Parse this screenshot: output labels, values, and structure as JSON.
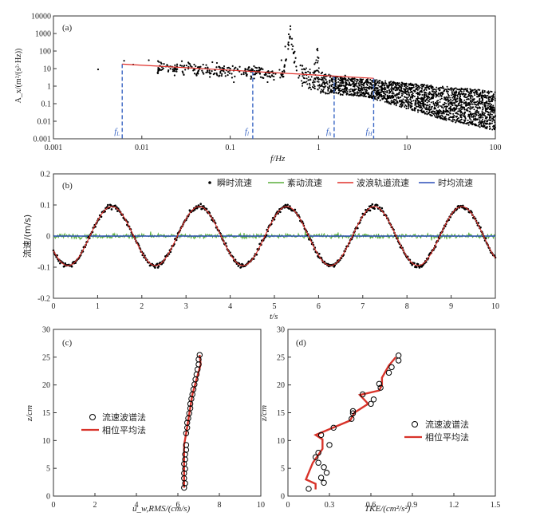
{
  "chart_data": [
    {
      "type": "scatter",
      "panel_label": "(a)",
      "xlabel": "f/Hz",
      "ylabel": "A_x/(m²/(s²·Hz))",
      "xscale": "log",
      "yscale": "log",
      "xlim": [
        0.001,
        100
      ],
      "ylim": [
        0.001,
        10000
      ],
      "xticks": [
        "0.001",
        "0.01",
        "0.1",
        "1",
        "10",
        "100"
      ],
      "yticks": [
        "0.001",
        "0.01",
        "0.1",
        "1",
        "10",
        "100",
        "1000",
        "10000"
      ],
      "spectrum_points": [
        [
          0.0032,
          9
        ],
        [
          0.0063,
          28
        ],
        [
          0.008,
          17
        ],
        [
          0.012,
          30
        ],
        [
          0.02,
          8
        ],
        [
          0.035,
          18
        ],
        [
          0.05,
          5
        ],
        [
          0.07,
          12
        ],
        [
          0.1,
          10
        ],
        [
          0.15,
          9
        ],
        [
          0.2,
          11
        ],
        [
          0.3,
          7
        ],
        [
          0.38,
          30
        ],
        [
          0.42,
          180
        ],
        [
          0.46,
          900
        ],
        [
          0.48,
          2600
        ],
        [
          0.5,
          500
        ],
        [
          0.55,
          40
        ],
        [
          0.65,
          9
        ],
        [
          0.8,
          6
        ],
        [
          0.9,
          18
        ],
        [
          0.96,
          120
        ],
        [
          1.0,
          40
        ],
        [
          1.1,
          6
        ],
        [
          1.5,
          3
        ],
        [
          2,
          4
        ],
        [
          3,
          2
        ],
        [
          4,
          2
        ],
        [
          6,
          1
        ],
        [
          10,
          0.5
        ],
        [
          20,
          0.1
        ],
        [
          40,
          0.05
        ],
        [
          70,
          0.02
        ],
        [
          100,
          0.02
        ]
      ],
      "envelope_upper": [
        [
          0.6,
          20
        ],
        [
          1,
          6
        ],
        [
          2,
          3
        ],
        [
          4,
          2.5
        ],
        [
          10,
          1.5
        ],
        [
          30,
          0.9
        ],
        [
          100,
          0.5
        ]
      ],
      "envelope_lower": [
        [
          0.6,
          1
        ],
        [
          1,
          0.4
        ],
        [
          2,
          0.3
        ],
        [
          4,
          0.2
        ],
        [
          10,
          0.05
        ],
        [
          30,
          0.01
        ],
        [
          100,
          0.003
        ]
      ],
      "fit_line": [
        [
          0.006,
          18
        ],
        [
          4.2,
          2.8
        ]
      ],
      "markers": [
        {
          "x": 0.006,
          "label": "f",
          "sub": "L"
        },
        {
          "x": 0.18,
          "label": "f",
          "sub": "l"
        },
        {
          "x": 1.5,
          "label": "f",
          "sub": "h"
        },
        {
          "x": 4.2,
          "label": "f",
          "sub": "H"
        }
      ],
      "colors": {
        "points": "#000000",
        "fit": "#e0302a",
        "markers": "#3a66c4"
      }
    },
    {
      "type": "line",
      "panel_label": "(b)",
      "xlabel": "t/s",
      "ylabel": "流速/(m/s)",
      "xlim": [
        0,
        10
      ],
      "ylim": [
        -0.2,
        0.2
      ],
      "xticks": [
        "0",
        "1",
        "2",
        "3",
        "4",
        "5",
        "6",
        "7",
        "8",
        "9",
        "10"
      ],
      "yticks": [
        "-0.2",
        "-0.1",
        "0",
        "0.1",
        "0.2"
      ],
      "wave": {
        "amplitude": 0.095,
        "period": 1.98,
        "phase_t0": 0.33,
        "mean": 0.0
      },
      "legend": [
        "瞬时流速",
        "紊动流速",
        "波浪轨道流速",
        "时均流速"
      ],
      "colors": {
        "instant": "#000000",
        "turbulent": "#5aad3c",
        "orbital": "#e0302a",
        "mean": "#2c4fb8"
      }
    },
    {
      "type": "scatter",
      "panel_label": "(c)",
      "xlabel": "u_w,RMS/(cm/s)",
      "ylabel": "z/cm",
      "xlim": [
        0,
        10
      ],
      "ylim": [
        0,
        30
      ],
      "xticks": [
        "0",
        "2",
        "4",
        "6",
        "8",
        "10"
      ],
      "yticks": [
        "0",
        "5",
        "10",
        "15",
        "20",
        "25",
        "30"
      ],
      "legend": [
        "流速波谱法",
        "相位平均法"
      ],
      "spectral_points": [
        [
          6.3,
          1.5
        ],
        [
          6.35,
          2.3
        ],
        [
          6.3,
          3.2
        ],
        [
          6.3,
          4.1
        ],
        [
          6.35,
          4.9
        ],
        [
          6.3,
          5.8
        ],
        [
          6.35,
          6.6
        ],
        [
          6.35,
          7.5
        ],
        [
          6.4,
          8.3
        ],
        [
          6.4,
          9.2
        ],
        [
          6.4,
          11.3
        ],
        [
          6.45,
          12.3
        ],
        [
          6.45,
          13.2
        ],
        [
          6.5,
          14.0
        ],
        [
          6.55,
          14.9
        ],
        [
          6.6,
          15.8
        ],
        [
          6.6,
          16.6
        ],
        [
          6.65,
          17.5
        ],
        [
          6.7,
          18.3
        ],
        [
          6.75,
          19.2
        ],
        [
          6.8,
          20.1
        ],
        [
          6.85,
          21.0
        ],
        [
          6.9,
          21.9
        ],
        [
          6.95,
          22.8
        ],
        [
          7.0,
          23.7
        ],
        [
          7.0,
          24.6
        ],
        [
          7.05,
          25.4
        ]
      ],
      "phase_avg_line": [
        [
          6.3,
          1.5
        ],
        [
          6.3,
          9.2
        ],
        [
          6.4,
          11.3
        ],
        [
          6.7,
          18.3
        ],
        [
          7.1,
          23.7
        ],
        [
          7.05,
          25.4
        ]
      ],
      "colors": {
        "line": "#d8332a",
        "points": "#000000"
      }
    },
    {
      "type": "scatter",
      "panel_label": "(d)",
      "xlabel": "TKE/(cm²/s²)",
      "ylabel": "z/cm",
      "xlim": [
        0,
        1.5
      ],
      "ylim": [
        0,
        30
      ],
      "xticks": [
        "0",
        "0.3",
        "0.6",
        "0.9",
        "1.2",
        "1.5"
      ],
      "yticks": [
        "0",
        "5",
        "10",
        "15",
        "20",
        "25",
        "30"
      ],
      "legend": [
        "流速波谱法",
        "相位平均法"
      ],
      "spectral_points": [
        [
          0.15,
          1.3
        ],
        [
          0.26,
          2.4
        ],
        [
          0.24,
          3.3
        ],
        [
          0.28,
          4.2
        ],
        [
          0.26,
          5.2
        ],
        [
          0.22,
          6.0
        ],
        [
          0.2,
          7.0
        ],
        [
          0.22,
          7.8
        ],
        [
          0.3,
          9.2
        ],
        [
          0.24,
          11.0
        ],
        [
          0.33,
          12.3
        ],
        [
          0.46,
          13.9
        ],
        [
          0.47,
          14.9
        ],
        [
          0.47,
          15.3
        ],
        [
          0.6,
          16.6
        ],
        [
          0.62,
          17.4
        ],
        [
          0.54,
          18.3
        ],
        [
          0.67,
          19.5
        ],
        [
          0.66,
          20.2
        ],
        [
          0.73,
          22.2
        ],
        [
          0.75,
          23.2
        ],
        [
          0.8,
          24.4
        ],
        [
          0.8,
          25.3
        ]
      ],
      "phase_avg_line": [
        [
          0.2,
          1.2
        ],
        [
          0.2,
          2.2
        ],
        [
          0.13,
          3.0
        ],
        [
          0.18,
          6.0
        ],
        [
          0.25,
          8.5
        ],
        [
          0.25,
          9.5
        ],
        [
          0.25,
          10.2
        ],
        [
          0.2,
          11.0
        ],
        [
          0.45,
          13.6
        ],
        [
          0.48,
          15.0
        ],
        [
          0.58,
          16.6
        ],
        [
          0.52,
          18.2
        ],
        [
          0.66,
          19.0
        ],
        [
          0.68,
          20.0
        ],
        [
          0.68,
          21.3
        ],
        [
          0.73,
          23.5
        ],
        [
          0.78,
          25.0
        ]
      ],
      "colors": {
        "line": "#d8332a",
        "points": "#000000"
      }
    }
  ]
}
